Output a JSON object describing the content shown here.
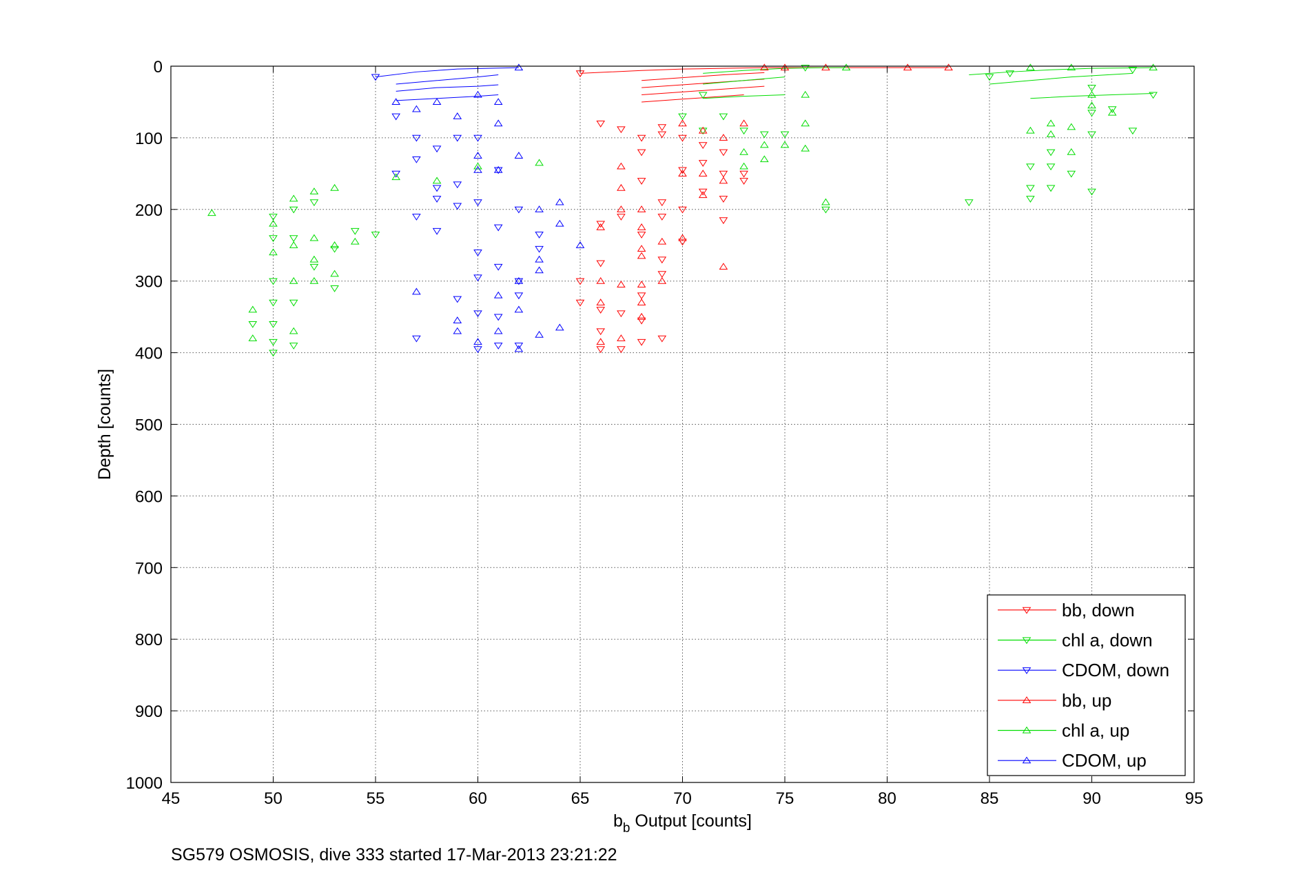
{
  "figure_caption": "SG579 OSMOSIS, dive 333 started 17-Mar-2013 23:21:22",
  "chart_data": {
    "type": "scatter",
    "title": "",
    "xlabel_main": "b",
    "xlabel_sub": "b",
    "xlabel_rest": " Output [counts]",
    "ylabel": "Depth [counts]",
    "xlim": [
      45,
      95
    ],
    "ylim": [
      0,
      1000
    ],
    "y_reversed": true,
    "grid": true,
    "grid_style": "dotted",
    "legend_position": "bottom-right",
    "x_ticks": [
      "45",
      "50",
      "55",
      "60",
      "65",
      "70",
      "75",
      "80",
      "85",
      "90",
      "95"
    ],
    "y_ticks": [
      "0",
      "100",
      "200",
      "300",
      "400",
      "500",
      "600",
      "700",
      "800",
      "900",
      "1000"
    ],
    "series": [
      {
        "name": "bb, down",
        "color": "#ff0000",
        "marker": "triangle-down",
        "points": [
          [
            65,
            10
          ],
          [
            66,
            80
          ],
          [
            67,
            88
          ],
          [
            68,
            100
          ],
          [
            68,
            120
          ],
          [
            68,
            160
          ],
          [
            69,
            85
          ],
          [
            69,
            95
          ],
          [
            69,
            190
          ],
          [
            70,
            100
          ],
          [
            70,
            145
          ],
          [
            70,
            200
          ],
          [
            71,
            110
          ],
          [
            71,
            135
          ],
          [
            71,
            175
          ],
          [
            72,
            120
          ],
          [
            72,
            150
          ],
          [
            72,
            185
          ],
          [
            72,
            215
          ],
          [
            73,
            150
          ],
          [
            73,
            160
          ],
          [
            66,
            220
          ],
          [
            66,
            275
          ],
          [
            67,
            210
          ],
          [
            68,
            235
          ],
          [
            69,
            210
          ],
          [
            69,
            270
          ],
          [
            70,
            245
          ],
          [
            65,
            300
          ],
          [
            65,
            330
          ],
          [
            66,
            340
          ],
          [
            67,
            345
          ],
          [
            68,
            320
          ],
          [
            68,
            355
          ],
          [
            69,
            290
          ],
          [
            69,
            380
          ],
          [
            66,
            370
          ],
          [
            66,
            395
          ],
          [
            67,
            395
          ],
          [
            68,
            385
          ]
        ]
      },
      {
        "name": "chl a, down",
        "color": "#00dd00",
        "marker": "triangle-down",
        "points": [
          [
            70,
            70
          ],
          [
            71,
            40
          ],
          [
            71,
            90
          ],
          [
            72,
            70
          ],
          [
            73,
            90
          ],
          [
            74,
            95
          ],
          [
            75,
            95
          ],
          [
            76,
            2
          ],
          [
            77,
            200
          ],
          [
            84,
            190
          ],
          [
            85,
            15
          ],
          [
            86,
            10
          ],
          [
            87,
            140
          ],
          [
            87,
            170
          ],
          [
            87,
            185
          ],
          [
            88,
            120
          ],
          [
            88,
            140
          ],
          [
            88,
            170
          ],
          [
            89,
            150
          ],
          [
            90,
            30
          ],
          [
            90,
            65
          ],
          [
            90,
            95
          ],
          [
            90,
            175
          ],
          [
            91,
            60
          ],
          [
            92,
            5
          ],
          [
            92,
            90
          ],
          [
            93,
            40
          ],
          [
            50,
            210
          ],
          [
            50,
            240
          ],
          [
            51,
            200
          ],
          [
            51,
            240
          ],
          [
            52,
            190
          ],
          [
            52,
            280
          ],
          [
            53,
            255
          ],
          [
            53,
            310
          ],
          [
            54,
            230
          ],
          [
            49,
            360
          ],
          [
            50,
            300
          ],
          [
            50,
            330
          ],
          [
            50,
            360
          ],
          [
            50,
            385
          ],
          [
            50,
            400
          ],
          [
            51,
            390
          ],
          [
            51,
            330
          ],
          [
            55,
            235
          ]
        ]
      },
      {
        "name": "CDOM, down",
        "color": "#0000ff",
        "marker": "triangle-down",
        "points": [
          [
            55,
            15
          ],
          [
            56,
            70
          ],
          [
            56,
            150
          ],
          [
            57,
            100
          ],
          [
            57,
            130
          ],
          [
            57,
            210
          ],
          [
            57,
            380
          ],
          [
            58,
            115
          ],
          [
            58,
            170
          ],
          [
            58,
            185
          ],
          [
            58,
            230
          ],
          [
            59,
            100
          ],
          [
            59,
            165
          ],
          [
            59,
            195
          ],
          [
            59,
            325
          ],
          [
            60,
            100
          ],
          [
            60,
            190
          ],
          [
            60,
            260
          ],
          [
            60,
            295
          ],
          [
            60,
            345
          ],
          [
            60,
            395
          ],
          [
            61,
            145
          ],
          [
            61,
            225
          ],
          [
            61,
            280
          ],
          [
            61,
            350
          ],
          [
            61,
            390
          ],
          [
            62,
            200
          ],
          [
            62,
            300
          ],
          [
            62,
            320
          ],
          [
            62,
            390
          ],
          [
            63,
            235
          ],
          [
            63,
            255
          ]
        ]
      },
      {
        "name": "bb, up",
        "color": "#ff0000",
        "marker": "triangle-up",
        "points": [
          [
            67,
            140
          ],
          [
            67,
            170
          ],
          [
            67,
            200
          ],
          [
            68,
            200
          ],
          [
            68,
            225
          ],
          [
            68,
            255
          ],
          [
            69,
            245
          ],
          [
            69,
            300
          ],
          [
            70,
            80
          ],
          [
            70,
            240
          ],
          [
            70,
            150
          ],
          [
            71,
            90
          ],
          [
            71,
            150
          ],
          [
            71,
            180
          ],
          [
            72,
            100
          ],
          [
            72,
            280
          ],
          [
            72,
            160
          ],
          [
            73,
            80
          ],
          [
            66,
            225
          ],
          [
            66,
            300
          ],
          [
            66,
            330
          ],
          [
            67,
            305
          ],
          [
            67,
            380
          ],
          [
            68,
            265
          ],
          [
            68,
            305
          ],
          [
            68,
            330
          ],
          [
            68,
            350
          ],
          [
            66,
            385
          ],
          [
            74,
            2
          ],
          [
            75,
            2
          ],
          [
            77,
            2
          ],
          [
            81,
            2
          ],
          [
            83,
            2
          ]
        ]
      },
      {
        "name": "chl a, up",
        "color": "#00dd00",
        "marker": "triangle-up",
        "points": [
          [
            47,
            205
          ],
          [
            49,
            340
          ],
          [
            49,
            380
          ],
          [
            50,
            220
          ],
          [
            50,
            260
          ],
          [
            51,
            185
          ],
          [
            51,
            250
          ],
          [
            51,
            300
          ],
          [
            51,
            370
          ],
          [
            52,
            175
          ],
          [
            52,
            240
          ],
          [
            52,
            270
          ],
          [
            52,
            300
          ],
          [
            53,
            170
          ],
          [
            53,
            250
          ],
          [
            53,
            290
          ],
          [
            54,
            245
          ],
          [
            56,
            155
          ],
          [
            58,
            160
          ],
          [
            60,
            140
          ],
          [
            63,
            135
          ],
          [
            73,
            140
          ],
          [
            73,
            120
          ],
          [
            74,
            130
          ],
          [
            74,
            110
          ],
          [
            75,
            110
          ],
          [
            76,
            40
          ],
          [
            76,
            80
          ],
          [
            76,
            115
          ],
          [
            77,
            190
          ],
          [
            78,
            2
          ],
          [
            87,
            90
          ],
          [
            88,
            80
          ],
          [
            88,
            95
          ],
          [
            89,
            85
          ],
          [
            89,
            120
          ],
          [
            90,
            40
          ],
          [
            90,
            55
          ],
          [
            91,
            65
          ],
          [
            93,
            2
          ],
          [
            87,
            2
          ],
          [
            89,
            2
          ]
        ]
      },
      {
        "name": "CDOM, up",
        "color": "#0000ff",
        "marker": "triangle-up",
        "points": [
          [
            56,
            50
          ],
          [
            57,
            60
          ],
          [
            58,
            50
          ],
          [
            59,
            70
          ],
          [
            60,
            40
          ],
          [
            60,
            125
          ],
          [
            60,
            145
          ],
          [
            61,
            50
          ],
          [
            61,
            80
          ],
          [
            61,
            145
          ],
          [
            62,
            125
          ],
          [
            62,
            300
          ],
          [
            62,
            340
          ],
          [
            63,
            200
          ],
          [
            63,
            270
          ],
          [
            63,
            285
          ],
          [
            63,
            375
          ],
          [
            64,
            190
          ],
          [
            64,
            220
          ],
          [
            64,
            365
          ],
          [
            65,
            250
          ],
          [
            57,
            315
          ],
          [
            59,
            355
          ],
          [
            59,
            370
          ],
          [
            60,
            385
          ],
          [
            61,
            320
          ],
          [
            61,
            370
          ],
          [
            62,
            395
          ],
          [
            62,
            2
          ]
        ]
      }
    ],
    "surface_lines": [
      {
        "color": "#ff0000",
        "x": [
          65,
          68,
          70,
          72,
          74,
          76,
          78,
          80,
          83
        ],
        "y": [
          10,
          6,
          4,
          3,
          2,
          2,
          2,
          2,
          2
        ]
      },
      {
        "color": "#ff0000",
        "x": [
          68,
          70,
          72,
          74
        ],
        "y": [
          20,
          16,
          12,
          9
        ]
      },
      {
        "color": "#ff0000",
        "x": [
          68,
          70,
          72,
          74
        ],
        "y": [
          30,
          26,
          22,
          18
        ]
      },
      {
        "color": "#ff0000",
        "x": [
          68,
          70,
          72,
          74
        ],
        "y": [
          40,
          36,
          32,
          28
        ]
      },
      {
        "color": "#ff0000",
        "x": [
          68,
          70,
          72,
          73
        ],
        "y": [
          50,
          46,
          42,
          40
        ]
      },
      {
        "color": "#00dd00",
        "x": [
          71,
          73,
          75,
          77,
          78
        ],
        "y": [
          10,
          6,
          3,
          2,
          2
        ]
      },
      {
        "color": "#00dd00",
        "x": [
          71,
          73,
          75
        ],
        "y": [
          25,
          20,
          15
        ]
      },
      {
        "color": "#00dd00",
        "x": [
          71,
          73,
          75
        ],
        "y": [
          45,
          42,
          40
        ]
      },
      {
        "color": "#00dd00",
        "x": [
          84,
          86,
          88,
          90,
          93
        ],
        "y": [
          12,
          8,
          5,
          3,
          2
        ]
      },
      {
        "color": "#00dd00",
        "x": [
          85,
          87,
          89,
          92
        ],
        "y": [
          25,
          20,
          15,
          10
        ]
      },
      {
        "color": "#00dd00",
        "x": [
          87,
          89,
          91,
          93
        ],
        "y": [
          45,
          42,
          40,
          38
        ]
      },
      {
        "color": "#0000ff",
        "x": [
          55,
          57,
          59,
          62
        ],
        "y": [
          15,
          8,
          4,
          2
        ]
      },
      {
        "color": "#0000ff",
        "x": [
          56,
          58,
          60,
          61
        ],
        "y": [
          25,
          20,
          15,
          12
        ]
      },
      {
        "color": "#0000ff",
        "x": [
          56,
          58,
          60,
          61
        ],
        "y": [
          35,
          30,
          28,
          26
        ]
      },
      {
        "color": "#0000ff",
        "x": [
          56,
          58,
          60,
          61
        ],
        "y": [
          48,
          45,
          42,
          40
        ]
      }
    ]
  }
}
